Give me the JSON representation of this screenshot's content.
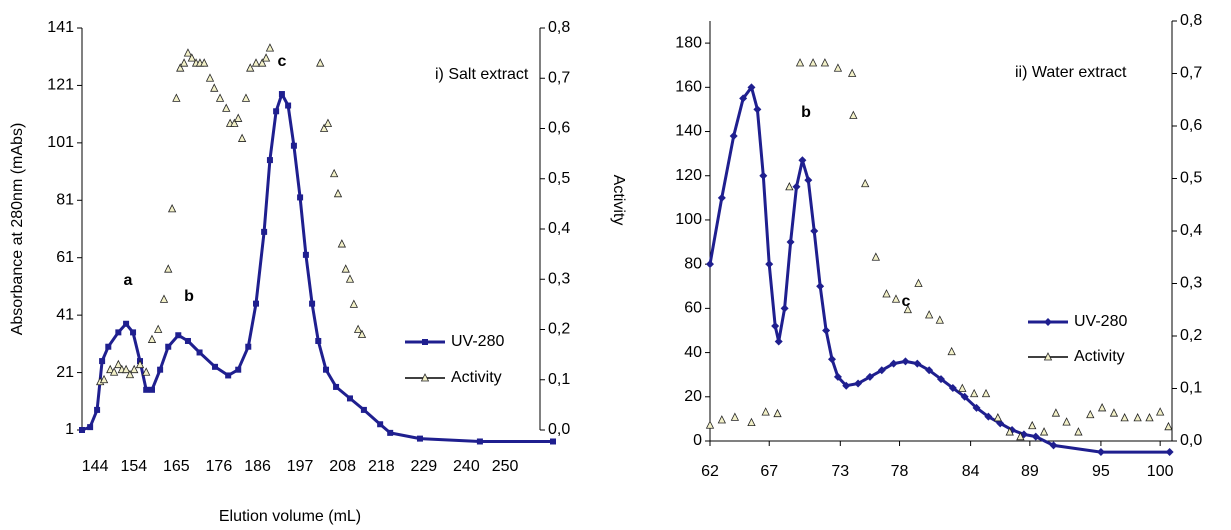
{
  "chart_data": [
    {
      "type": "line",
      "xlabel": "Elution volume (mL)",
      "ylabel": "Absorbance at 280nm (mAbs)",
      "y2label": "Activity",
      "annotations": [
        "a",
        "b",
        "c",
        "i) Salt extract"
      ],
      "xlim": [
        140.6,
        262.4
      ],
      "xticks": [
        144,
        154,
        165,
        176,
        186,
        197,
        208,
        218,
        229,
        240,
        250
      ],
      "ylim": [
        1,
        141
      ],
      "yticks": [
        1,
        21,
        41,
        61,
        81,
        101,
        121,
        141
      ],
      "y2lim": [
        0,
        0.8
      ],
      "y2ticks": [
        {
          "value": 0,
          "label": "0,0"
        },
        {
          "value": 0.1,
          "label": "0,1"
        },
        {
          "value": 0.2,
          "label": "0,2"
        },
        {
          "value": 0.3,
          "label": "0,3"
        },
        {
          "value": 0.4,
          "label": "0,4"
        },
        {
          "value": 0.5,
          "label": "0,5"
        },
        {
          "value": 0.6,
          "label": "0,6"
        },
        {
          "value": 0.7,
          "label": "0,7"
        },
        {
          "value": 0.8,
          "label": "0,8"
        }
      ],
      "legend": "right",
      "series": [
        {
          "name": "UV-280",
          "color": "#1f1f8f",
          "marker": "square",
          "line": true,
          "x": [
            140.6,
            142.7,
            144.5,
            145.8,
            147.4,
            150,
            152,
            153.8,
            155.6,
            157.2,
            158.7,
            160.8,
            162.9,
            165.5,
            168,
            171,
            175,
            178.4,
            181,
            183.6,
            185.6,
            187.7,
            189.2,
            190.8,
            192.3,
            193.9,
            195.4,
            197,
            198.5,
            200.1,
            201.7,
            203.7,
            206.3,
            209.9,
            213.5,
            217.7,
            220.3,
            228,
            243.5,
            262.4
          ],
          "values": [
            1,
            2,
            8,
            25,
            30,
            35,
            38,
            35,
            25,
            15,
            15,
            22,
            30,
            34,
            32,
            28,
            23,
            20,
            22,
            30,
            45,
            70,
            95,
            112,
            118,
            114,
            100,
            82,
            62,
            45,
            32,
            22,
            16,
            12,
            8,
            3,
            0,
            -2,
            -3,
            -3
          ]
        },
        {
          "name": "Activity",
          "color": "#f2f0c8",
          "marker": "triangle",
          "line": false,
          "axis": "y2",
          "x": [
            145.3,
            146.3,
            147.9,
            148.9,
            150,
            150.9,
            152,
            153,
            154.1,
            155.6,
            157.2,
            158.7,
            160.3,
            161.8,
            162.9,
            163.9,
            165,
            166,
            167,
            168,
            169,
            170.1,
            171.1,
            172.2,
            173.7,
            174.8,
            176.3,
            177.9,
            178.9,
            180,
            181,
            182,
            183,
            184.1,
            185.6,
            187.2,
            188.2,
            189.2,
            202.2,
            203.2,
            204.2,
            205.8,
            206.8,
            207.8,
            208.8,
            209.9,
            210.9,
            212,
            213
          ],
          "values": [
            0.096,
            0.1,
            0.12,
            0.115,
            0.13,
            0.12,
            0.12,
            0.11,
            0.12,
            0.13,
            0.115,
            0.18,
            0.2,
            0.26,
            0.32,
            0.44,
            0.66,
            0.72,
            0.73,
            0.75,
            0.74,
            0.73,
            0.73,
            0.73,
            0.7,
            0.68,
            0.66,
            0.64,
            0.61,
            0.61,
            0.62,
            0.58,
            0.66,
            0.72,
            0.73,
            0.73,
            0.74,
            0.76,
            0.73,
            0.6,
            0.61,
            0.51,
            0.47,
            0.37,
            0.32,
            0.3,
            0.25,
            0.2,
            0.19
          ]
        }
      ]
    },
    {
      "type": "line",
      "annotations": [
        "b",
        "c",
        "ii) Water extract"
      ],
      "xlim": [
        62,
        101
      ],
      "xticks": [
        62,
        67,
        73,
        78,
        84,
        89,
        95,
        100
      ],
      "ylim": [
        0,
        190
      ],
      "yticks": [
        0,
        20,
        40,
        60,
        80,
        100,
        120,
        140,
        160,
        180
      ],
      "y2lim": [
        0,
        0.8
      ],
      "y2ticks": [
        {
          "value": 0,
          "label": "0,0"
        },
        {
          "value": 0.1,
          "label": "0,1"
        },
        {
          "value": 0.2,
          "label": "0,2"
        },
        {
          "value": 0.3,
          "label": "0,3"
        },
        {
          "value": 0.4,
          "label": "0,4"
        },
        {
          "value": 0.5,
          "label": "0,5"
        },
        {
          "value": 0.6,
          "label": "0,6"
        },
        {
          "value": 0.7,
          "label": "0,7"
        },
        {
          "value": 0.8,
          "label": "0,8"
        }
      ],
      "legend": "right",
      "series": [
        {
          "name": "UV-280",
          "color": "#1f1f8f",
          "marker": "diamond",
          "line": true,
          "x": [
            62,
            63,
            64,
            64.8,
            65.5,
            66,
            66.5,
            67,
            67.5,
            67.8,
            68.3,
            68.8,
            69.3,
            69.8,
            70.3,
            70.8,
            71.3,
            71.8,
            72.3,
            72.8,
            73.5,
            74.5,
            75.5,
            76.5,
            77.5,
            78.5,
            79.5,
            80.5,
            81.5,
            82.5,
            83.5,
            84.5,
            85.5,
            86.5,
            87.5,
            88.5,
            89.5,
            91,
            95,
            100.8
          ],
          "values": [
            80,
            110,
            138,
            155,
            160,
            150,
            120,
            80,
            52,
            45,
            60,
            90,
            115,
            127,
            118,
            95,
            70,
            50,
            37,
            29,
            25,
            26,
            29,
            32,
            35,
            36,
            35,
            32,
            28,
            24,
            20,
            15,
            11,
            8,
            5,
            3,
            2,
            -2,
            -5,
            -5
          ]
        },
        {
          "name": "Activity",
          "color": "#f2f0c8",
          "marker": "triangle",
          "line": false,
          "axis": "y2",
          "x": [
            62,
            63,
            64.1,
            65.5,
            66.7,
            67.7,
            68.7,
            69.6,
            70.7,
            71.7,
            72.8,
            74,
            74.1,
            75.1,
            76,
            76.9,
            77.7,
            78.7,
            79.6,
            80.5,
            81.4,
            82.4,
            83.3,
            84.3,
            85.3,
            86.3,
            87.3,
            88.2,
            89.2,
            90.2,
            91.2,
            92.1,
            93.1,
            94.1,
            95.1,
            96.1,
            97,
            98.1,
            99.1,
            100,
            100.7
          ],
          "values": [
            0.03,
            0.04,
            0.045,
            0.035,
            0.055,
            0.052,
            0.484,
            0.72,
            0.72,
            0.72,
            0.71,
            0.7,
            0.62,
            0.49,
            0.35,
            0.28,
            0.27,
            0.25,
            0.3,
            0.24,
            0.23,
            0.17,
            0.1,
            0.09,
            0.09,
            0.044,
            0.017,
            0.008,
            0.029,
            0.017,
            0.053,
            0.036,
            0.017,
            0.05,
            0.063,
            0.053,
            0.044,
            0.044,
            0.044,
            0.055,
            0.027
          ]
        }
      ]
    }
  ]
}
